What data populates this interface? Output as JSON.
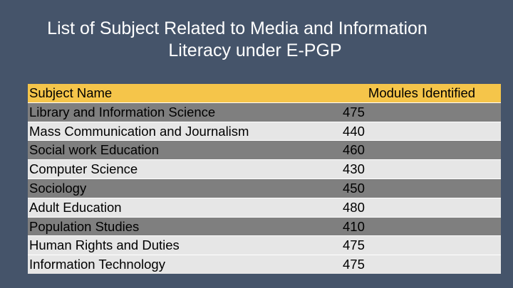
{
  "slide": {
    "title_line1": "List of Subject Related to Media and Information",
    "title_line2": "Literacy under E-PGP"
  },
  "table": {
    "headers": [
      "Subject Name",
      "Modules Identified"
    ],
    "rows": [
      {
        "subject": "Library and Information Science",
        "modules": "475"
      },
      {
        "subject": "Mass Communication and Journalism",
        "modules": "440"
      },
      {
        "subject": "Social work Education",
        "modules": "460"
      },
      {
        "subject": "Computer Science",
        "modules": "430"
      },
      {
        "subject": "Sociology",
        "modules": "450"
      },
      {
        "subject": "Adult Education",
        "modules": "480"
      },
      {
        "subject": "Population Studies",
        "modules": "410"
      },
      {
        "subject": "Human Rights and Duties",
        "modules": "475"
      },
      {
        "subject": "Information Technology",
        "modules": "475"
      }
    ]
  },
  "colors": {
    "background": "#45546a",
    "header_row": "#f5c54a",
    "row_dark": "#7f7f7f",
    "row_light": "#e6e6e6",
    "title_text": "#ffffff"
  }
}
